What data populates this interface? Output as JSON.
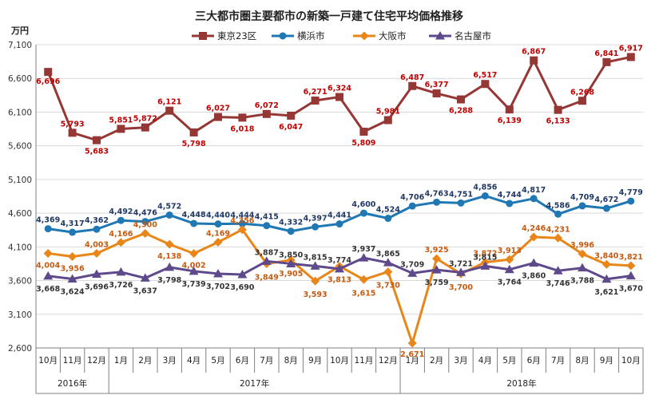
{
  "chart_data": {
    "type": "line",
    "title": "三大都市圏主要都市の新築一戸建て住宅平均価格推移",
    "y_unit": "万円",
    "ylim": [
      2600,
      7100
    ],
    "yticks": [
      2600,
      3100,
      3600,
      4100,
      4600,
      5100,
      5600,
      6100,
      6600,
      7100
    ],
    "ytick_labels": [
      "2,600",
      "3,100",
      "3,600",
      "4,100",
      "4,600",
      "5,100",
      "5,600",
      "6,100",
      "6,600",
      "7,100"
    ],
    "categories": [
      "10月",
      "11月",
      "12月",
      "1月",
      "2月",
      "3月",
      "4月",
      "5月",
      "6月",
      "7月",
      "8月",
      "9月",
      "10月",
      "11月",
      "12月",
      "1月",
      "2月",
      "3月",
      "4月",
      "5月",
      "6月",
      "7月",
      "8月",
      "9月",
      "10月"
    ],
    "year_groups": [
      {
        "label": "2016年",
        "start": 0,
        "end": 2
      },
      {
        "label": "2017年",
        "start": 3,
        "end": 14
      },
      {
        "label": "2018年",
        "start": 15,
        "end": 24
      }
    ],
    "grid": true,
    "legend_position": "top",
    "series": [
      {
        "name": "東京23区",
        "color": "#953735",
        "marker": "square",
        "values": [
          6696,
          5793,
          5683,
          5851,
          5872,
          6121,
          5798,
          6027,
          6018,
          6072,
          6047,
          6271,
          6324,
          5809,
          5981,
          6487,
          6377,
          6288,
          6517,
          6139,
          6867,
          6133,
          6268,
          6841,
          6917
        ],
        "labels": [
          "6,696",
          "5,793",
          "5,683",
          "5,851",
          "5,872",
          "6,121",
          "5,798",
          "6,027",
          "6,018",
          "6,072",
          "6,047",
          "6,271",
          "6,324",
          "5,809",
          "5,981",
          "6,487",
          "6,377",
          "6,288",
          "6,517",
          "6,139",
          "6,867",
          "6,133",
          "6,268",
          "6,841",
          "6,917"
        ],
        "label_color": "#c00000"
      },
      {
        "name": "横浜市",
        "color": "#1f77b4",
        "marker": "circle",
        "values": [
          4369,
          4317,
          4362,
          4492,
          4476,
          4572,
          4448,
          4440,
          4444,
          4415,
          4332,
          4397,
          4441,
          4600,
          4524,
          4706,
          4763,
          4751,
          4856,
          4744,
          4817,
          4586,
          4709,
          4672,
          4779
        ],
        "labels": [
          "4,369",
          "4,317",
          "4,362",
          "4,492",
          "4,476",
          "4,572",
          "4,448",
          "4,440",
          "4,444",
          "4,415",
          "4,332",
          "4,397",
          "4,441",
          "4,600",
          "4,524",
          "4,706",
          "4,763",
          "4,751",
          "4,856",
          "4,744",
          "4,817",
          "4,586",
          "4,709",
          "4,672",
          "4,779"
        ],
        "label_color": "#1f3864"
      },
      {
        "name": "大阪市",
        "color": "#e8861a",
        "marker": "diamond",
        "values": [
          4004,
          3956,
          4003,
          4166,
          4300,
          4138,
          4002,
          4169,
          4356,
          3849,
          3905,
          3593,
          3813,
          3615,
          3730,
          2671,
          3925,
          3700,
          3872,
          3913,
          4246,
          4231,
          3996,
          3840,
          3821
        ],
        "labels": [
          "4,004",
          "3,956",
          "4,003",
          "4,166",
          "4,300",
          "4,138",
          "4,002",
          "4,169",
          "4,356",
          "3,849",
          "3,905",
          "3,593",
          "3,813",
          "3,615",
          "3,730",
          "2,671",
          "3,925",
          "3,700",
          "3,872",
          "3,913",
          "4,246",
          "4,231",
          "3,996",
          "3,840",
          "3,821"
        ],
        "label_color": "#c55a11"
      },
      {
        "name": "名古屋市",
        "color": "#5e4a8b",
        "marker": "triangle",
        "values": [
          3668,
          3624,
          3696,
          3726,
          3637,
          3798,
          3739,
          3702,
          3690,
          3887,
          3850,
          3815,
          3774,
          3937,
          3865,
          3709,
          3759,
          3721,
          3815,
          3764,
          3860,
          3746,
          3788,
          3621,
          3670
        ],
        "labels": [
          "3,668",
          "3,624",
          "3,696",
          "3,726",
          "3,637",
          "3,798",
          "3,739",
          "3,702",
          "3,690",
          "3,887",
          "3,850",
          "3,815",
          "3,774",
          "3,937",
          "3,865",
          "3,709",
          "3,759",
          "3,721",
          "3,815",
          "3,764",
          "3,860",
          "3,746",
          "3,788",
          "3,621",
          "3,670"
        ],
        "label_color": "#333333"
      }
    ]
  }
}
